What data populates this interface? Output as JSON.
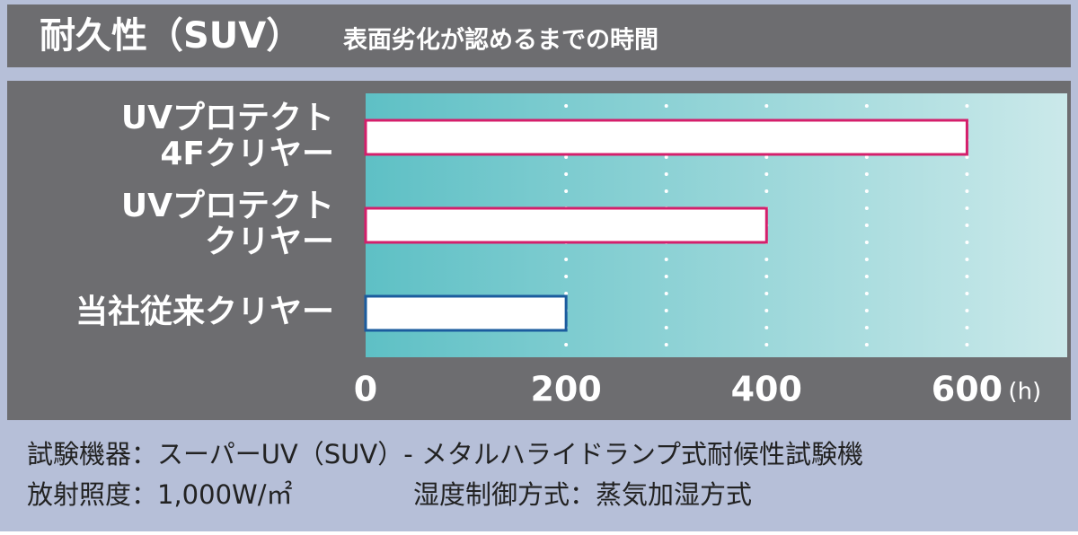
{
  "chart_data": {
    "type": "bar",
    "orientation": "horizontal",
    "title": "耐久性（SUV）",
    "subtitle": "表面劣化が認めるまでの時間",
    "categories": [
      [
        "UVプロテクト",
        "4Fクリヤー"
      ],
      [
        "UVプロテクト",
        "クリヤー"
      ],
      [
        "当社従来クリヤー"
      ]
    ],
    "values": [
      600,
      400,
      200
    ],
    "colors": [
      "#d41f6b",
      "#d41f6b",
      "#1b5c9e"
    ],
    "xlim": [
      0,
      700
    ],
    "xticks": [
      0,
      200,
      400,
      600
    ],
    "x_unit": "(h)",
    "grid_x": [
      200,
      300,
      400,
      500,
      600
    ],
    "grid": true
  },
  "notes": [
    "試験機器：スーパーUV（SUV）- メタルハライドランプ式耐候性試験機",
    "放射照度：1,000W/㎡",
    "湿度制御方式：蒸気加湿方式"
  ]
}
